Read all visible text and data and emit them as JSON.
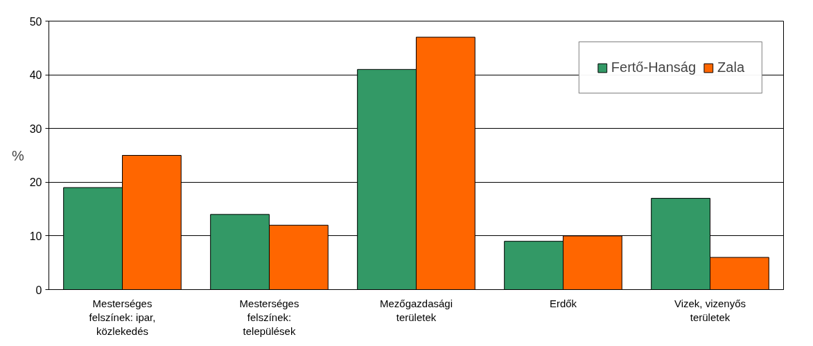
{
  "chart_data": {
    "type": "bar",
    "ylabel": "%",
    "categories": [
      "Mesterséges felszínek: ipar, közlekedés",
      "Mesterséges felszínek: települések",
      "Mezőgazdasági területek",
      "Erdők",
      "Vizek, vizenyős területek"
    ],
    "series": [
      {
        "name": "Fertő-Hanság",
        "color": "#339966",
        "values": [
          19,
          14,
          41,
          9,
          17
        ]
      },
      {
        "name": "Zala",
        "color": "#ff6600",
        "values": [
          25,
          12,
          47,
          10,
          6
        ]
      }
    ],
    "ylim": [
      0,
      50
    ],
    "yticks": [
      0,
      10,
      20,
      30,
      40,
      50
    ],
    "grid": "y",
    "legend": "top right"
  }
}
